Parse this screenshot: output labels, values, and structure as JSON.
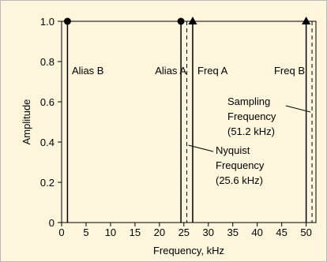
{
  "chart_data": {
    "type": "line",
    "title": "",
    "xlabel": "Frequency, kHz",
    "ylabel": "Amplitude",
    "xlim": [
      0,
      52
    ],
    "ylim": [
      0,
      1.0
    ],
    "x_ticks": [
      0,
      5,
      10,
      15,
      20,
      25,
      30,
      35,
      40,
      45,
      50
    ],
    "y_ticks": [
      0,
      0.2,
      0.4,
      0.6,
      0.8,
      1.0
    ],
    "y_tick_labels": [
      "0",
      "0.2",
      "0.4",
      "0.6",
      "0.8",
      "1.0"
    ],
    "grid": false,
    "series": [
      {
        "marker": "circle",
        "points": [
          {
            "x": 1.2,
            "y": 1.0
          },
          {
            "x": 24.4,
            "y": 1.0
          }
        ]
      },
      {
        "marker": "triangle",
        "points": [
          {
            "x": 26.8,
            "y": 1.0
          },
          {
            "x": 50.0,
            "y": 1.0
          }
        ]
      }
    ],
    "reference_lines": [
      {
        "x": 25.6,
        "style": "dashed"
      },
      {
        "x": 51.2,
        "style": "dashed"
      }
    ],
    "annotations": [
      {
        "text": "Alias B",
        "x": 1.2
      },
      {
        "text": "Alias A",
        "x": 24.4
      },
      {
        "text": "Freq A",
        "x": 26.8
      },
      {
        "text": "Freq B",
        "x": 50.0
      },
      {
        "lines": [
          "Nyquist",
          "Frequency",
          "(25.6 kHz)"
        ],
        "x": 25.6
      },
      {
        "lines": [
          "Sampling",
          "Frequency",
          "(51.2 kHz)"
        ],
        "x": 51.2
      }
    ]
  }
}
